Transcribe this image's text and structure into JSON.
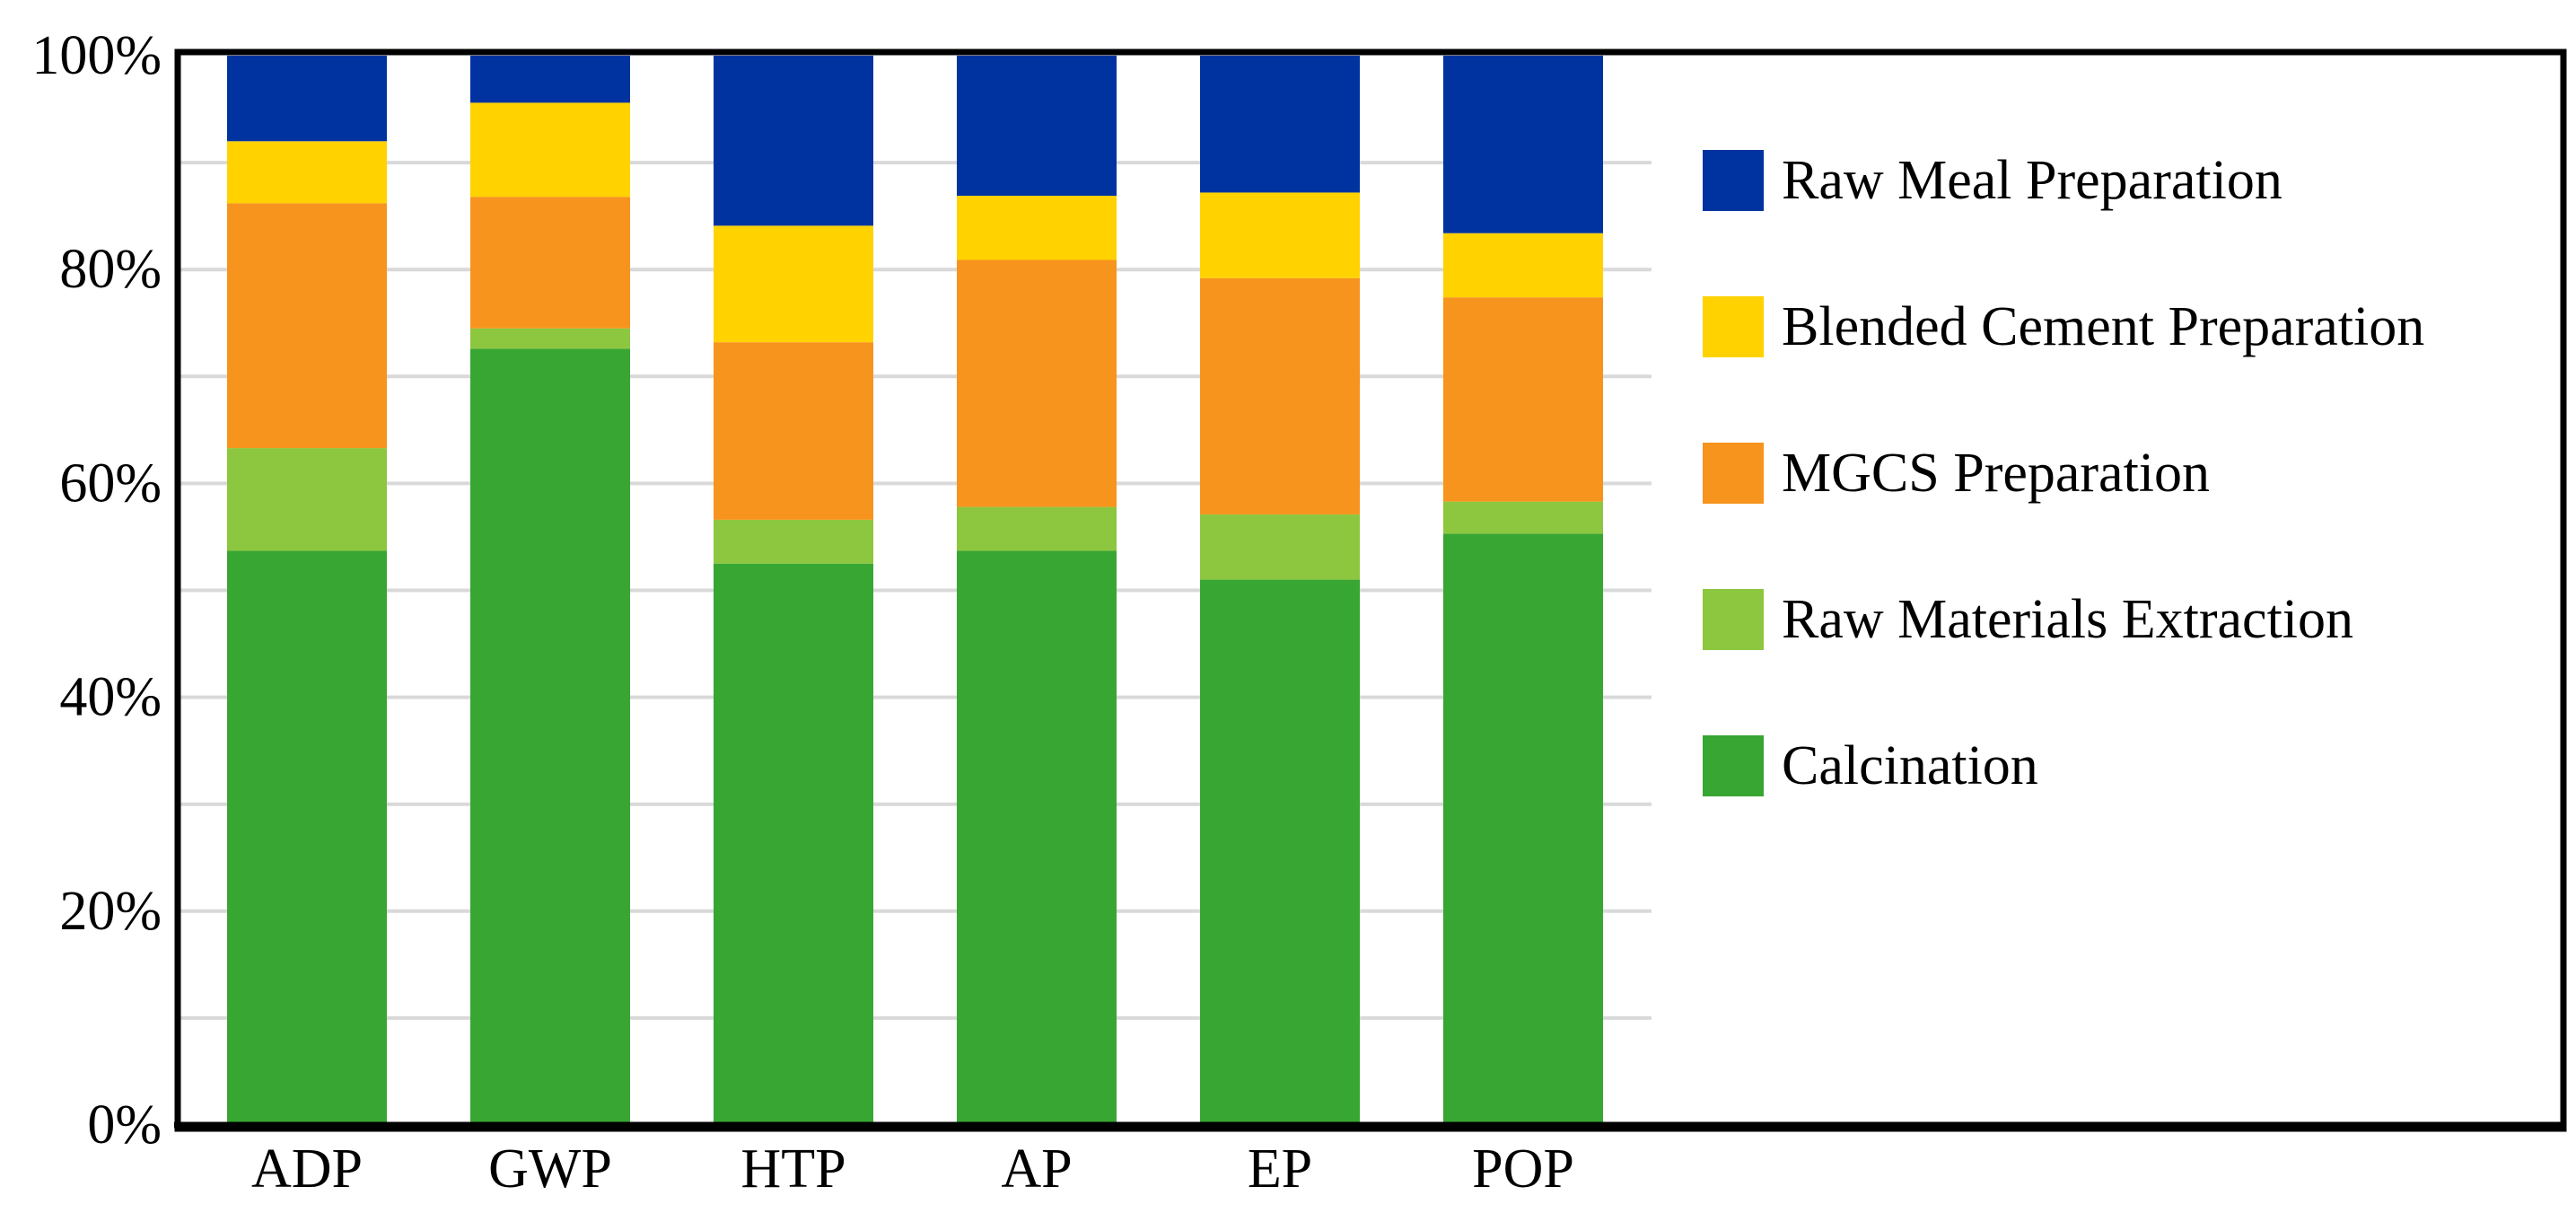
{
  "chart_data": {
    "type": "bar",
    "stacked": true,
    "percent": true,
    "title": "",
    "xlabel": "",
    "ylabel": "",
    "ylim": [
      0,
      100
    ],
    "yticks": [
      "0%",
      "20%",
      "40%",
      "60%",
      "80%",
      "100%"
    ],
    "categories": [
      "ADP",
      "GWP",
      "HTP",
      "AP",
      "EP",
      "POP"
    ],
    "series": [
      {
        "name": "Calcination",
        "color": "#38A632",
        "values": [
          53.7,
          72.6,
          52.5,
          53.7,
          51.0,
          55.3
        ]
      },
      {
        "name": "Raw Materials Extraction",
        "color": "#8DC63F",
        "values": [
          9.6,
          1.9,
          4.1,
          4.1,
          6.1,
          3.0
        ]
      },
      {
        "name": "MGCS Preparation",
        "color": "#F7941D",
        "values": [
          22.9,
          12.3,
          16.6,
          23.1,
          22.1,
          19.1
        ]
      },
      {
        "name": "Blended Cement Preparation",
        "color": "#FFD200",
        "values": [
          5.8,
          8.8,
          10.9,
          6.0,
          8.0,
          6.0
        ]
      },
      {
        "name": "Raw Meal Preparation",
        "color": "#0033A0",
        "values": [
          8.0,
          4.4,
          15.9,
          13.1,
          12.8,
          16.6
        ]
      }
    ],
    "legend_order": [
      "Raw Meal Preparation",
      "Blended Cement Preparation",
      "MGCS Preparation",
      "Raw Materials Extraction",
      "Calcination"
    ],
    "legend_position": "right",
    "grid": true
  }
}
